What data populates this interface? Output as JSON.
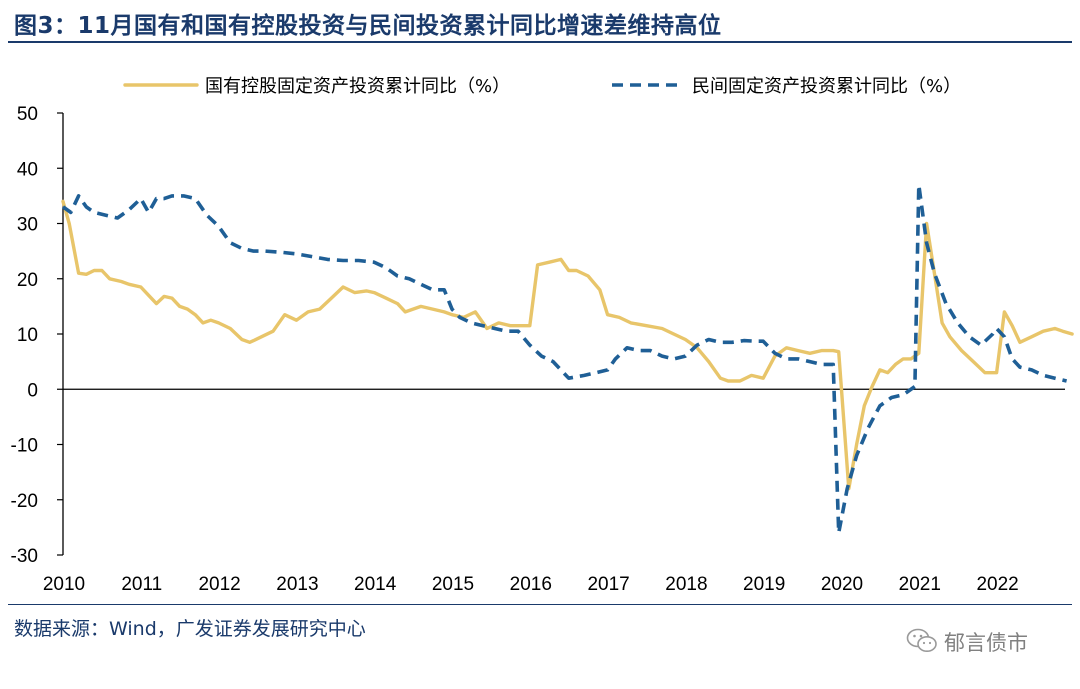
{
  "figure": {
    "title": "图3：11月国有和国有控股投资与民间投资累计同比增速差维持高位",
    "source": "数据来源：Wind，广发证券发展研究中心",
    "watermark": "郁言债市"
  },
  "chart_data": {
    "type": "line",
    "title": "图3：11月国有和国有控股投资与民间投资累计同比增速差维持高位",
    "xlabel": "",
    "ylabel": "",
    "xlim": [
      2010,
      2023
    ],
    "ylim": [
      -30,
      50
    ],
    "yticks": [
      -30,
      -20,
      -10,
      0,
      10,
      20,
      30,
      40,
      50
    ],
    "xticks": [
      "2010",
      "2011",
      "2012",
      "2013",
      "2014",
      "2015",
      "2016",
      "2017",
      "2018",
      "2019",
      "2020",
      "2021",
      "2022"
    ],
    "legend_position": "top",
    "colors": {
      "soe": "#e8c56a",
      "private": "#1f5f96",
      "axis": "#000000"
    },
    "series": [
      {
        "name": "国有控股固定资产投资累计同比（%）",
        "style": "solid",
        "x": [
          2010.0,
          2010.08,
          2010.2,
          2010.3,
          2010.4,
          2010.5,
          2010.6,
          2010.75,
          2010.85,
          2011.0,
          2011.1,
          2011.2,
          2011.3,
          2011.4,
          2011.5,
          2011.6,
          2011.7,
          2011.8,
          2011.9,
          2012.0,
          2012.15,
          2012.3,
          2012.4,
          2012.45,
          2012.55,
          2012.7,
          2012.85,
          2013.0,
          2013.15,
          2013.3,
          2013.45,
          2013.6,
          2013.75,
          2013.9,
          2014.0,
          2014.15,
          2014.3,
          2014.4,
          2014.5,
          2014.6,
          2014.75,
          2014.9,
          2015.0,
          2015.15,
          2015.3,
          2015.45,
          2015.6,
          2015.75,
          2015.9,
          2016.0,
          2016.1,
          2016.25,
          2016.4,
          2016.5,
          2016.6,
          2016.75,
          2016.9,
          2017.0,
          2017.15,
          2017.3,
          2017.5,
          2017.7,
          2017.85,
          2018.0,
          2018.15,
          2018.3,
          2018.45,
          2018.55,
          2018.7,
          2018.85,
          2019.0,
          2019.15,
          2019.3,
          2019.45,
          2019.6,
          2019.75,
          2019.9,
          2019.97,
          2020.1,
          2020.2,
          2020.3,
          2020.4,
          2020.5,
          2020.6,
          2020.7,
          2020.8,
          2020.9,
          2021.0,
          2021.1,
          2021.2,
          2021.3,
          2021.4,
          2021.55,
          2021.7,
          2021.85,
          2022.0,
          2022.1,
          2022.2,
          2022.3,
          2022.45,
          2022.6,
          2022.75,
          2022.85,
          2022.97
        ],
        "values": [
          34.0,
          30.0,
          21.0,
          20.8,
          21.5,
          21.5,
          20.0,
          19.5,
          19.0,
          18.5,
          17.0,
          15.5,
          16.8,
          16.5,
          15.0,
          14.5,
          13.5,
          12.0,
          12.5,
          12.0,
          11.0,
          9.0,
          8.5,
          8.8,
          9.5,
          10.5,
          13.5,
          12.5,
          14.0,
          14.5,
          16.5,
          18.5,
          17.5,
          17.8,
          17.5,
          16.5,
          15.5,
          14.0,
          14.5,
          15.0,
          14.5,
          14.0,
          13.5,
          13.0,
          14.0,
          11.0,
          12.0,
          11.5,
          11.5,
          11.5,
          22.5,
          23.0,
          23.5,
          21.5,
          21.5,
          20.5,
          18.0,
          13.5,
          13.0,
          12.0,
          11.5,
          11.0,
          10.0,
          9.0,
          7.5,
          5.0,
          2.0,
          1.5,
          1.5,
          2.5,
          2.0,
          6.0,
          7.5,
          7.0,
          6.5,
          7.0,
          7.0,
          6.8,
          -18.0,
          -10.0,
          -3.0,
          0.5,
          3.5,
          3.0,
          4.5,
          5.5,
          5.5,
          6.5,
          30.0,
          21.0,
          12.0,
          9.5,
          7.0,
          5.0,
          3.0,
          3.0,
          14.0,
          11.5,
          8.5,
          9.5,
          10.5,
          11.0,
          10.5,
          10.0
        ]
      },
      {
        "name": "民间固定资产投资累计同比（%）",
        "style": "dashed",
        "x": [
          2010.0,
          2010.1,
          2010.2,
          2010.3,
          2010.4,
          2010.55,
          2010.7,
          2010.85,
          2011.0,
          2011.1,
          2011.2,
          2011.3,
          2011.4,
          2011.55,
          2011.7,
          2011.85,
          2012.0,
          2012.15,
          2012.3,
          2012.45,
          2012.6,
          2012.8,
          2013.0,
          2013.2,
          2013.4,
          2013.6,
          2013.8,
          2014.0,
          2014.15,
          2014.3,
          2014.45,
          2014.6,
          2014.75,
          2014.9,
          2015.0,
          2015.1,
          2015.25,
          2015.4,
          2015.55,
          2015.7,
          2015.85,
          2016.0,
          2016.15,
          2016.3,
          2016.5,
          2016.7,
          2016.85,
          2017.0,
          2017.1,
          2017.25,
          2017.4,
          2017.55,
          2017.7,
          2017.85,
          2018.0,
          2018.15,
          2018.3,
          2018.45,
          2018.6,
          2018.75,
          2018.9,
          2019.0,
          2019.15,
          2019.3,
          2019.45,
          2019.6,
          2019.75,
          2019.9,
          2019.97,
          2020.08,
          2020.2,
          2020.35,
          2020.5,
          2020.65,
          2020.8,
          2020.95,
          2021.0,
          2021.1,
          2021.2,
          2021.35,
          2021.5,
          2021.65,
          2021.8,
          2021.95,
          2022.0,
          2022.1,
          2022.2,
          2022.3,
          2022.45,
          2022.6,
          2022.75,
          2022.9
        ],
        "values": [
          33.0,
          32.0,
          35.0,
          33.0,
          32.0,
          31.5,
          31.0,
          32.5,
          34.5,
          32.0,
          34.5,
          34.5,
          35.0,
          35.0,
          34.5,
          31.5,
          29.5,
          26.5,
          25.5,
          25.0,
          25.0,
          24.8,
          24.5,
          24.0,
          23.5,
          23.3,
          23.3,
          23.0,
          22.0,
          20.5,
          20.0,
          19.0,
          18.0,
          18.0,
          14.5,
          13.0,
          12.0,
          11.5,
          11.0,
          10.5,
          10.5,
          8.0,
          6.0,
          5.0,
          2.0,
          2.5,
          3.0,
          3.5,
          5.5,
          7.5,
          7.0,
          7.0,
          6.0,
          5.5,
          6.0,
          8.0,
          9.0,
          8.5,
          8.5,
          8.8,
          8.7,
          8.7,
          6.5,
          5.5,
          5.5,
          5.0,
          4.5,
          4.5,
          -26.0,
          -18.0,
          -12.0,
          -7.0,
          -3.0,
          -1.5,
          -1.0,
          0.5,
          37.0,
          26.5,
          21.0,
          15.5,
          12.0,
          9.5,
          8.0,
          10.0,
          11.0,
          9.5,
          5.5,
          4.0,
          3.5,
          2.5,
          2.0,
          1.5
        ]
      }
    ]
  }
}
